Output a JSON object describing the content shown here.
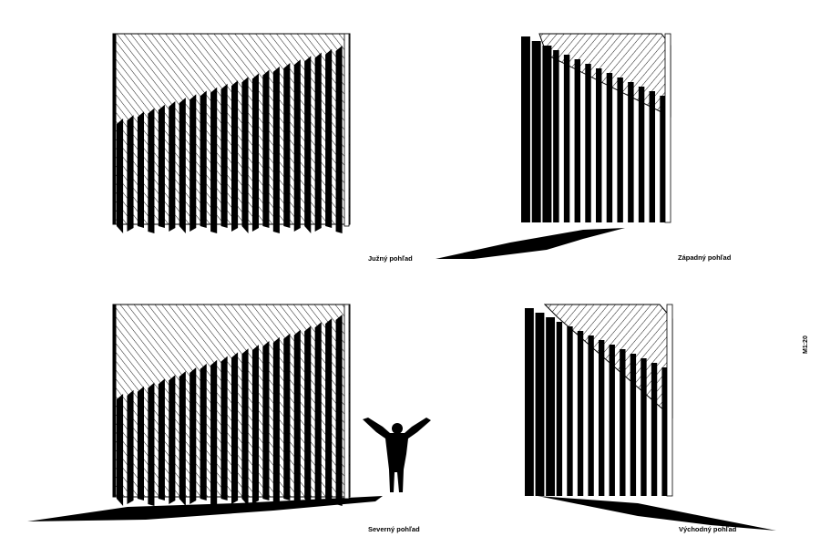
{
  "views": {
    "south": "Južný pohľad",
    "west": "Západný pohľad",
    "north": "Severný pohľad",
    "east": "Východný pohľad"
  },
  "scale": "M1:20"
}
